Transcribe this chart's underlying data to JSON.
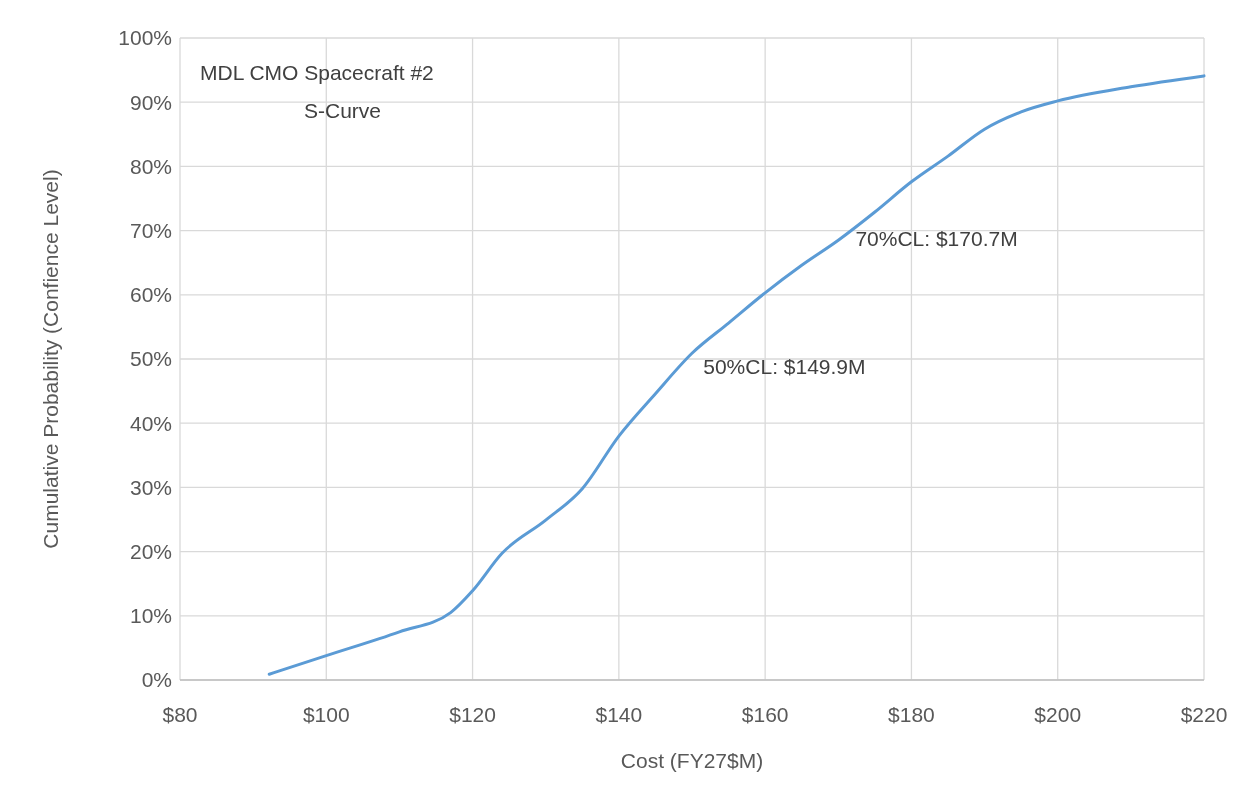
{
  "chart_data": {
    "type": "line",
    "title": "MDL CMO Spacecraft #2",
    "subtitle": "S-Curve",
    "xlabel": "Cost (FY27$M)",
    "ylabel": "Cumulative Probability (Confience Level)",
    "x": [
      92.2,
      100,
      110,
      117,
      120,
      124,
      130,
      135,
      140,
      145,
      150,
      155,
      160,
      165,
      170,
      175,
      180,
      185,
      190,
      195,
      200,
      210,
      220
    ],
    "series": [
      {
        "color": "#5b9bd5",
        "values": [
          0.9,
          3.8,
          7.5,
          10.5,
          13.9,
          19.7,
          24.9,
          29.8,
          38,
          44.6,
          50.9,
          55.6,
          60.3,
          64.6,
          68.5,
          72.9,
          77.6,
          81.6,
          85.8,
          88.5,
          90.2,
          92.4,
          94.1
        ]
      }
    ],
    "xlim": [
      80,
      220
    ],
    "xticks": [
      {
        "value": 80,
        "label": "$80"
      },
      {
        "value": 100,
        "label": "$100"
      },
      {
        "value": 120,
        "label": "$120"
      },
      {
        "value": 140,
        "label": "$140"
      },
      {
        "value": 160,
        "label": "$160"
      },
      {
        "value": 180,
        "label": "$180"
      },
      {
        "value": 200,
        "label": "$200"
      },
      {
        "value": 220,
        "label": "$220"
      }
    ],
    "ylim": [
      0,
      100
    ],
    "yticks": [
      {
        "value": 0,
        "label": "0%"
      },
      {
        "value": 10,
        "label": "10%"
      },
      {
        "value": 20,
        "label": "20%"
      },
      {
        "value": 30,
        "label": "30%"
      },
      {
        "value": 40,
        "label": "40%"
      },
      {
        "value": 50,
        "label": "50%"
      },
      {
        "value": 60,
        "label": "60%"
      },
      {
        "value": 70,
        "label": "70%"
      },
      {
        "value": 80,
        "label": "80%"
      },
      {
        "value": 90,
        "label": "90%"
      },
      {
        "value": 100,
        "label": "100%"
      }
    ],
    "annotations": [
      {
        "text": "50%CL: $149.9M",
        "x": 149.9,
        "y": 50
      },
      {
        "text": "70%CL: $170.7M",
        "x": 170.7,
        "y": 70
      }
    ],
    "grid": true,
    "marker": "none",
    "line_style": "solid"
  }
}
